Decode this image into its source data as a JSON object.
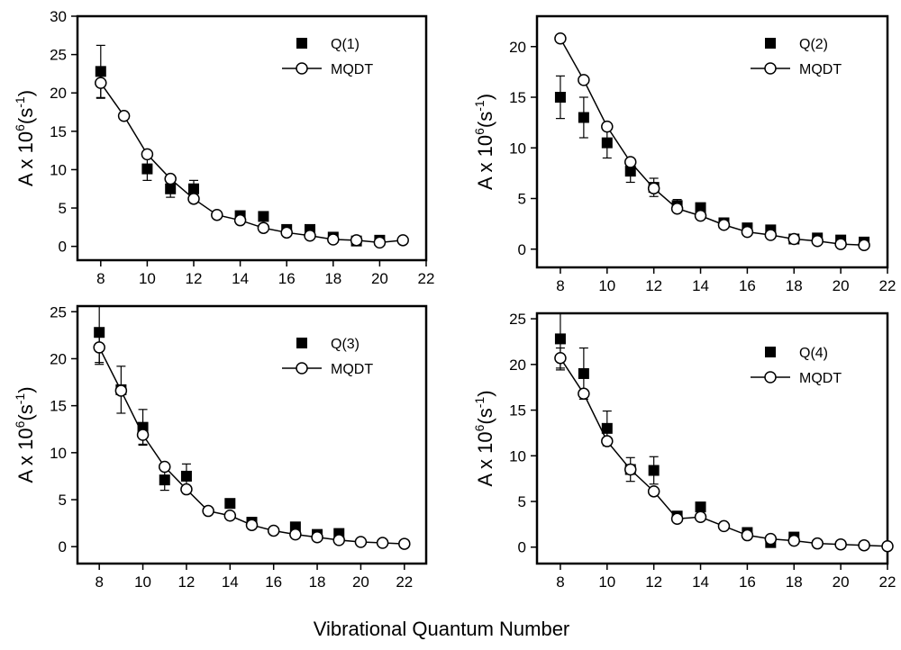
{
  "figure": {
    "xlabel": "Vibrational Quantum Number"
  },
  "chart_data": [
    {
      "type": "scatter",
      "ylabel_main": "A x 10",
      "ylabel_exp": "6",
      "ylabel_unit": "(s",
      "ylabel_unit_exp": "-1",
      "ylabel_close": ")",
      "xlim": [
        7,
        22
      ],
      "ylim": [
        -1.8,
        30
      ],
      "x_ticks": [
        8,
        10,
        12,
        14,
        16,
        18,
        20,
        22
      ],
      "y_ticks": [
        0,
        5,
        10,
        15,
        20,
        25,
        30
      ],
      "legend_position": "top-right",
      "series": [
        {
          "name": "Q(1)",
          "marker": "filled-square",
          "points": [
            {
              "x": 8,
              "y": 22.8,
              "err": 3.4
            },
            {
              "x": 10,
              "y": 10.1,
              "err": 1.5
            },
            {
              "x": 11,
              "y": 7.5,
              "err": 1.1
            },
            {
              "x": 12,
              "y": 7.5,
              "err": 1.1
            },
            {
              "x": 14,
              "y": 4.0,
              "err": 0
            },
            {
              "x": 15,
              "y": 3.9,
              "err": 0
            },
            {
              "x": 16,
              "y": 2.2,
              "err": 0
            },
            {
              "x": 17,
              "y": 2.2,
              "err": 0
            },
            {
              "x": 18,
              "y": 1.2,
              "err": 0
            },
            {
              "x": 19,
              "y": 0.7,
              "err": 0
            },
            {
              "x": 20,
              "y": 0.8,
              "err": 0
            }
          ]
        },
        {
          "name": "MQDT",
          "marker": "open-circle-line",
          "points": [
            {
              "x": 8,
              "y": 21.3,
              "err": 2.0
            },
            {
              "x": 9,
              "y": 17.0,
              "err": 0
            },
            {
              "x": 10,
              "y": 12.0,
              "err": 0
            },
            {
              "x": 11,
              "y": 8.8,
              "err": 0
            },
            {
              "x": 12,
              "y": 6.2,
              "err": 0
            },
            {
              "x": 13,
              "y": 4.1,
              "err": 0
            },
            {
              "x": 14,
              "y": 3.4,
              "err": 0
            },
            {
              "x": 15,
              "y": 2.4,
              "err": 0
            },
            {
              "x": 16,
              "y": 1.8,
              "err": 0
            },
            {
              "x": 17,
              "y": 1.4,
              "err": 0
            },
            {
              "x": 18,
              "y": 0.9,
              "err": 0
            },
            {
              "x": 19,
              "y": 0.8,
              "err": 0
            },
            {
              "x": 20,
              "y": 0.5,
              "err": 0
            },
            {
              "x": 21,
              "y": 0.8,
              "err": 0
            }
          ]
        }
      ]
    },
    {
      "type": "scatter",
      "ylabel_main": "A x 10",
      "ylabel_exp": "6",
      "ylabel_unit": "(s",
      "ylabel_unit_exp": "-1",
      "ylabel_close": ")",
      "xlim": [
        7,
        22
      ],
      "ylim": [
        -1.8,
        23
      ],
      "x_ticks": [
        8,
        10,
        12,
        14,
        16,
        18,
        20,
        22
      ],
      "y_ticks": [
        0,
        5,
        10,
        15,
        20
      ],
      "legend_position": "top-right",
      "series": [
        {
          "name": "Q(2)",
          "marker": "filled-square",
          "points": [
            {
              "x": 8,
              "y": 15.0,
              "err": 2.1
            },
            {
              "x": 9,
              "y": 13.0,
              "err": 2.0
            },
            {
              "x": 10,
              "y": 10.5,
              "err": 1.5
            },
            {
              "x": 11,
              "y": 7.7,
              "err": 1.1
            },
            {
              "x": 12,
              "y": 6.1,
              "err": 0.9
            },
            {
              "x": 13,
              "y": 4.3,
              "err": 0.6
            },
            {
              "x": 14,
              "y": 4.1,
              "err": 0
            },
            {
              "x": 15,
              "y": 2.6,
              "err": 0
            },
            {
              "x": 16,
              "y": 2.1,
              "err": 0
            },
            {
              "x": 17,
              "y": 1.9,
              "err": 0
            },
            {
              "x": 18,
              "y": 1.0,
              "err": 0
            },
            {
              "x": 19,
              "y": 1.1,
              "err": 0
            },
            {
              "x": 20,
              "y": 0.9,
              "err": 0
            },
            {
              "x": 21,
              "y": 0.7,
              "err": 0
            }
          ]
        },
        {
          "name": "MQDT",
          "marker": "open-circle-line",
          "points": [
            {
              "x": 8,
              "y": 20.8,
              "err": 0
            },
            {
              "x": 9,
              "y": 16.7,
              "err": 0
            },
            {
              "x": 10,
              "y": 12.1,
              "err": 0
            },
            {
              "x": 11,
              "y": 8.6,
              "err": 0
            },
            {
              "x": 12,
              "y": 6.0,
              "err": 0
            },
            {
              "x": 13,
              "y": 4.0,
              "err": 0
            },
            {
              "x": 14,
              "y": 3.3,
              "err": 0
            },
            {
              "x": 15,
              "y": 2.4,
              "err": 0
            },
            {
              "x": 16,
              "y": 1.7,
              "err": 0
            },
            {
              "x": 17,
              "y": 1.4,
              "err": 0
            },
            {
              "x": 18,
              "y": 1.0,
              "err": 0
            },
            {
              "x": 19,
              "y": 0.8,
              "err": 0
            },
            {
              "x": 20,
              "y": 0.5,
              "err": 0
            },
            {
              "x": 21,
              "y": 0.4,
              "err": 0
            }
          ]
        }
      ]
    },
    {
      "type": "scatter",
      "ylabel_main": "A x 10",
      "ylabel_exp": "6",
      "ylabel_unit": "(s",
      "ylabel_unit_exp": "-1",
      "ylabel_close": ")",
      "xlim": [
        7,
        23
      ],
      "ylim": [
        -1.8,
        25.6
      ],
      "x_ticks": [
        8,
        10,
        12,
        14,
        16,
        18,
        20,
        22
      ],
      "y_ticks": [
        0,
        5,
        10,
        15,
        20,
        25
      ],
      "legend_position": "top-right",
      "series": [
        {
          "name": "Q(3)",
          "marker": "filled-square",
          "points": [
            {
              "x": 8,
              "y": 22.8,
              "err": 3.4
            },
            {
              "x": 9,
              "y": 16.7,
              "err": 2.5
            },
            {
              "x": 10,
              "y": 12.7,
              "err": 1.9
            },
            {
              "x": 11,
              "y": 7.1,
              "err": 1.1
            },
            {
              "x": 12,
              "y": 7.5,
              "err": 1.3
            },
            {
              "x": 14,
              "y": 4.6,
              "err": 0
            },
            {
              "x": 15,
              "y": 2.6,
              "err": 0
            },
            {
              "x": 17,
              "y": 2.1,
              "err": 0
            },
            {
              "x": 18,
              "y": 1.3,
              "err": 0
            },
            {
              "x": 19,
              "y": 1.4,
              "err": 0
            }
          ]
        },
        {
          "name": "MQDT",
          "marker": "open-circle-line",
          "points": [
            {
              "x": 8,
              "y": 21.2,
              "err": 1.6
            },
            {
              "x": 9,
              "y": 16.6,
              "err": 0
            },
            {
              "x": 10,
              "y": 11.9,
              "err": 1.0
            },
            {
              "x": 11,
              "y": 8.5,
              "err": 0
            },
            {
              "x": 12,
              "y": 6.1,
              "err": 0
            },
            {
              "x": 13,
              "y": 3.8,
              "err": 0
            },
            {
              "x": 14,
              "y": 3.3,
              "err": 0
            },
            {
              "x": 15,
              "y": 2.3,
              "err": 0
            },
            {
              "x": 16,
              "y": 1.7,
              "err": 0
            },
            {
              "x": 17,
              "y": 1.3,
              "err": 0
            },
            {
              "x": 18,
              "y": 1.0,
              "err": 0
            },
            {
              "x": 19,
              "y": 0.7,
              "err": 0
            },
            {
              "x": 20,
              "y": 0.5,
              "err": 0
            },
            {
              "x": 21,
              "y": 0.4,
              "err": 0
            },
            {
              "x": 22,
              "y": 0.3,
              "err": 0
            }
          ]
        }
      ]
    },
    {
      "type": "scatter",
      "ylabel_main": "A x 10",
      "ylabel_exp": "6",
      "ylabel_unit": "(s",
      "ylabel_unit_exp": "-1",
      "ylabel_close": ")",
      "xlim": [
        7,
        22
      ],
      "ylim": [
        -1.8,
        25.6
      ],
      "x_ticks": [
        8,
        10,
        12,
        14,
        16,
        18,
        20,
        22
      ],
      "y_ticks": [
        0,
        5,
        10,
        15,
        20,
        25
      ],
      "legend_position": "top-right",
      "series": [
        {
          "name": "Q(4)",
          "marker": "filled-square",
          "points": [
            {
              "x": 8,
              "y": 22.8,
              "err": 3.4
            },
            {
              "x": 9,
              "y": 19.0,
              "err": 2.8
            },
            {
              "x": 10,
              "y": 13.0,
              "err": 1.9
            },
            {
              "x": 11,
              "y": 8.5,
              "err": 1.3
            },
            {
              "x": 12,
              "y": 8.4,
              "err": 1.5
            },
            {
              "x": 13,
              "y": 3.4,
              "err": 0
            },
            {
              "x": 14,
              "y": 4.4,
              "err": 0
            },
            {
              "x": 16,
              "y": 1.6,
              "err": 0
            },
            {
              "x": 17,
              "y": 0.5,
              "err": 0
            },
            {
              "x": 18,
              "y": 1.1,
              "err": 0
            }
          ]
        },
        {
          "name": "MQDT",
          "marker": "open-circle-line",
          "points": [
            {
              "x": 8,
              "y": 20.7,
              "err": 1.1
            },
            {
              "x": 9,
              "y": 16.8,
              "err": 0
            },
            {
              "x": 10,
              "y": 11.6,
              "err": 0
            },
            {
              "x": 11,
              "y": 8.5,
              "err": 0
            },
            {
              "x": 12,
              "y": 6.1,
              "err": 0
            },
            {
              "x": 13,
              "y": 3.1,
              "err": 0
            },
            {
              "x": 14,
              "y": 3.3,
              "err": 0
            },
            {
              "x": 15,
              "y": 2.3,
              "err": 0
            },
            {
              "x": 16,
              "y": 1.3,
              "err": 0
            },
            {
              "x": 17,
              "y": 0.9,
              "err": 0
            },
            {
              "x": 18,
              "y": 0.7,
              "err": 0
            },
            {
              "x": 19,
              "y": 0.4,
              "err": 0
            },
            {
              "x": 20,
              "y": 0.3,
              "err": 0
            },
            {
              "x": 21,
              "y": 0.2,
              "err": 0
            },
            {
              "x": 22,
              "y": 0.1,
              "err": 0
            }
          ]
        }
      ]
    }
  ]
}
